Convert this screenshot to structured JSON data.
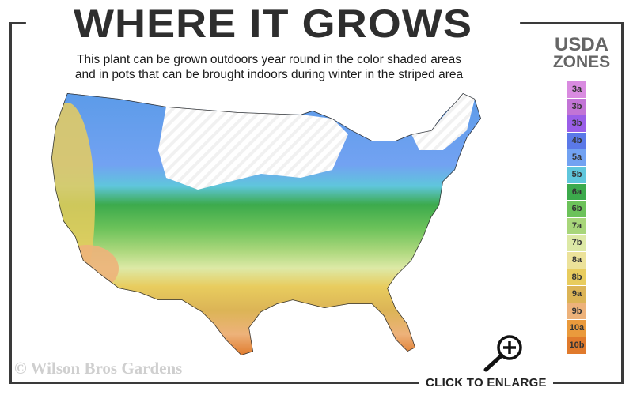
{
  "header": {
    "title": "WHERE IT GROWS",
    "subtitle_line1": "This plant can be grown outdoors year round in the color shaded areas",
    "subtitle_line2": "and in pots that can be brought indoors during winter in the striped area"
  },
  "legend": {
    "title_line1": "USDA",
    "title_line2": "ZONES",
    "zones": [
      {
        "label": "3a",
        "color": "#d98be0"
      },
      {
        "label": "3b",
        "color": "#c274d6"
      },
      {
        "label": "3b",
        "color": "#9a5ee8"
      },
      {
        "label": "4b",
        "color": "#5b79e8"
      },
      {
        "label": "5a",
        "color": "#72a2f2"
      },
      {
        "label": "5b",
        "color": "#5fc6dc"
      },
      {
        "label": "6a",
        "color": "#3caa4c"
      },
      {
        "label": "6b",
        "color": "#6cc25a"
      },
      {
        "label": "7a",
        "color": "#a8d67a"
      },
      {
        "label": "7b",
        "color": "#dde9a6"
      },
      {
        "label": "8a",
        "color": "#ece29a"
      },
      {
        "label": "8b",
        "color": "#e8cc5e"
      },
      {
        "label": "9a",
        "color": "#dcb456"
      },
      {
        "label": "9b",
        "color": "#edb27a"
      },
      {
        "label": "10a",
        "color": "#ea9a3c"
      },
      {
        "label": "10b",
        "color": "#e07a2c"
      }
    ]
  },
  "footer": {
    "copyright": "© Wilson Bros Gardens",
    "enlarge_label": "CLICK TO ENLARGE",
    "enlarge_icon": "magnifier-plus-icon"
  }
}
